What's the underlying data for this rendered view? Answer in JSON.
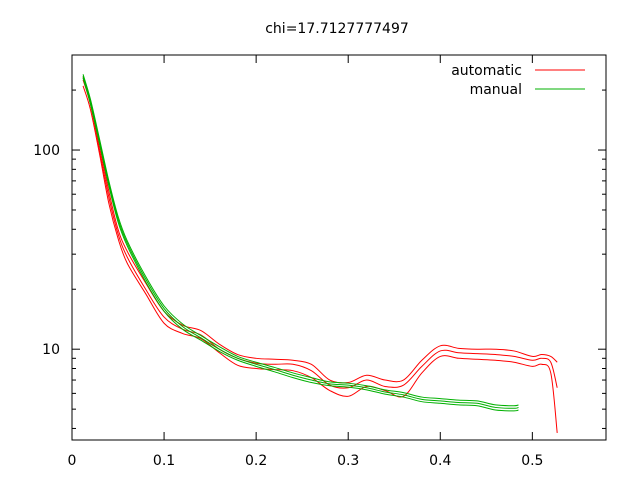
{
  "chart_data": {
    "type": "line",
    "title": "chi=17.7127777497",
    "xlabel": "",
    "ylabel": "",
    "xlim": [
      0,
      0.58
    ],
    "ylim": [
      3.5,
      300
    ],
    "yscale": "log",
    "grid": false,
    "legend_position": "top-right",
    "x_ticks": [
      0,
      0.1,
      0.2,
      0.3,
      0.4,
      0.5
    ],
    "x_tick_labels": [
      "0",
      "0.1",
      "0.2",
      "0.3",
      "0.4",
      "0.5"
    ],
    "y_ticks_labeled": [
      10,
      100
    ],
    "y_tick_labels": [
      "10",
      "100"
    ],
    "series": [
      {
        "name": "automatic",
        "color": "#ff0000",
        "legend": true,
        "x": [
          0.012,
          0.02,
          0.03,
          0.04,
          0.05,
          0.06,
          0.08,
          0.1,
          0.12,
          0.14,
          0.16,
          0.18,
          0.2,
          0.22,
          0.24,
          0.26,
          0.28,
          0.3,
          0.32,
          0.34,
          0.36,
          0.38,
          0.4,
          0.42,
          0.44,
          0.46,
          0.48,
          0.5,
          0.51,
          0.52,
          0.527
        ],
        "y": [
          225,
          170,
          100,
          58,
          38,
          29,
          20,
          14.5,
          12.6,
          11.8,
          10.0,
          9.0,
          8.5,
          8.4,
          8.4,
          7.8,
          6.6,
          6.4,
          7.0,
          6.5,
          6.6,
          8.2,
          9.8,
          9.6,
          9.5,
          9.4,
          9.2,
          8.8,
          9.0,
          8.6,
          6.4
        ]
      },
      {
        "name": "automatic-upper",
        "color": "#ff0000",
        "legend": false,
        "x": [
          0.012,
          0.02,
          0.03,
          0.04,
          0.05,
          0.06,
          0.08,
          0.1,
          0.12,
          0.14,
          0.16,
          0.18,
          0.2,
          0.22,
          0.24,
          0.26,
          0.28,
          0.3,
          0.32,
          0.34,
          0.36,
          0.38,
          0.4,
          0.42,
          0.44,
          0.46,
          0.48,
          0.5,
          0.51,
          0.52,
          0.527
        ],
        "y": [
          232,
          178,
          106,
          62,
          40,
          31,
          21.5,
          15.5,
          13.2,
          12.4,
          10.6,
          9.4,
          9.0,
          8.9,
          8.8,
          8.4,
          7.0,
          6.8,
          7.4,
          7.0,
          7.0,
          8.8,
          10.4,
          10.1,
          10.0,
          10.0,
          9.8,
          9.2,
          9.4,
          9.2,
          8.6
        ]
      },
      {
        "name": "automatic-lower",
        "color": "#ff0000",
        "legend": false,
        "x": [
          0.012,
          0.02,
          0.03,
          0.04,
          0.05,
          0.06,
          0.08,
          0.1,
          0.12,
          0.14,
          0.16,
          0.18,
          0.2,
          0.22,
          0.24,
          0.26,
          0.28,
          0.3,
          0.32,
          0.34,
          0.36,
          0.38,
          0.4,
          0.42,
          0.44,
          0.46,
          0.48,
          0.5,
          0.51,
          0.52,
          0.527
        ],
        "y": [
          210,
          160,
          95,
          54,
          36,
          27,
          19,
          13.5,
          12.0,
          11.3,
          9.6,
          8.3,
          8.0,
          7.9,
          7.8,
          7.2,
          6.2,
          5.8,
          6.5,
          6.2,
          5.8,
          7.6,
          9.2,
          9.0,
          8.9,
          8.8,
          8.6,
          8.2,
          8.4,
          7.6,
          3.8
        ]
      },
      {
        "name": "manual",
        "color": "#00b000",
        "legend": true,
        "x": [
          0.012,
          0.02,
          0.03,
          0.04,
          0.05,
          0.06,
          0.08,
          0.1,
          0.12,
          0.14,
          0.16,
          0.18,
          0.2,
          0.22,
          0.24,
          0.26,
          0.28,
          0.3,
          0.32,
          0.34,
          0.36,
          0.38,
          0.4,
          0.42,
          0.44,
          0.46,
          0.48,
          0.485
        ],
        "y": [
          235,
          175,
          110,
          68,
          45,
          34,
          22.5,
          16.0,
          13.0,
          11.4,
          10.0,
          9.0,
          8.4,
          7.9,
          7.4,
          7.0,
          6.7,
          6.6,
          6.4,
          6.1,
          5.9,
          5.6,
          5.5,
          5.4,
          5.35,
          5.1,
          5.05,
          5.1
        ]
      },
      {
        "name": "manual-upper",
        "color": "#00b000",
        "legend": false,
        "x": [
          0.012,
          0.02,
          0.03,
          0.04,
          0.05,
          0.06,
          0.08,
          0.1,
          0.12,
          0.14,
          0.16,
          0.18,
          0.2,
          0.22,
          0.24,
          0.26,
          0.28,
          0.3,
          0.32,
          0.34,
          0.36,
          0.38,
          0.4,
          0.42,
          0.44,
          0.46,
          0.48,
          0.485
        ],
        "y": [
          240,
          180,
          113,
          70,
          46.5,
          35,
          23.2,
          16.5,
          13.4,
          11.7,
          10.3,
          9.2,
          8.6,
          8.1,
          7.6,
          7.2,
          6.85,
          6.75,
          6.55,
          6.25,
          6.05,
          5.75,
          5.65,
          5.55,
          5.5,
          5.25,
          5.2,
          5.25
        ]
      },
      {
        "name": "manual-lower",
        "color": "#00b000",
        "legend": false,
        "x": [
          0.012,
          0.02,
          0.03,
          0.04,
          0.05,
          0.06,
          0.08,
          0.1,
          0.12,
          0.14,
          0.16,
          0.18,
          0.2,
          0.22,
          0.24,
          0.26,
          0.28,
          0.3,
          0.32,
          0.34,
          0.36,
          0.38,
          0.4,
          0.42,
          0.44,
          0.46,
          0.48,
          0.485
        ],
        "y": [
          230,
          170,
          107,
          66,
          43.5,
          33,
          21.8,
          15.5,
          12.6,
          11.1,
          9.75,
          8.8,
          8.2,
          7.7,
          7.2,
          6.8,
          6.55,
          6.45,
          6.25,
          5.95,
          5.75,
          5.45,
          5.35,
          5.25,
          5.2,
          4.95,
          4.9,
          4.95
        ]
      }
    ]
  }
}
